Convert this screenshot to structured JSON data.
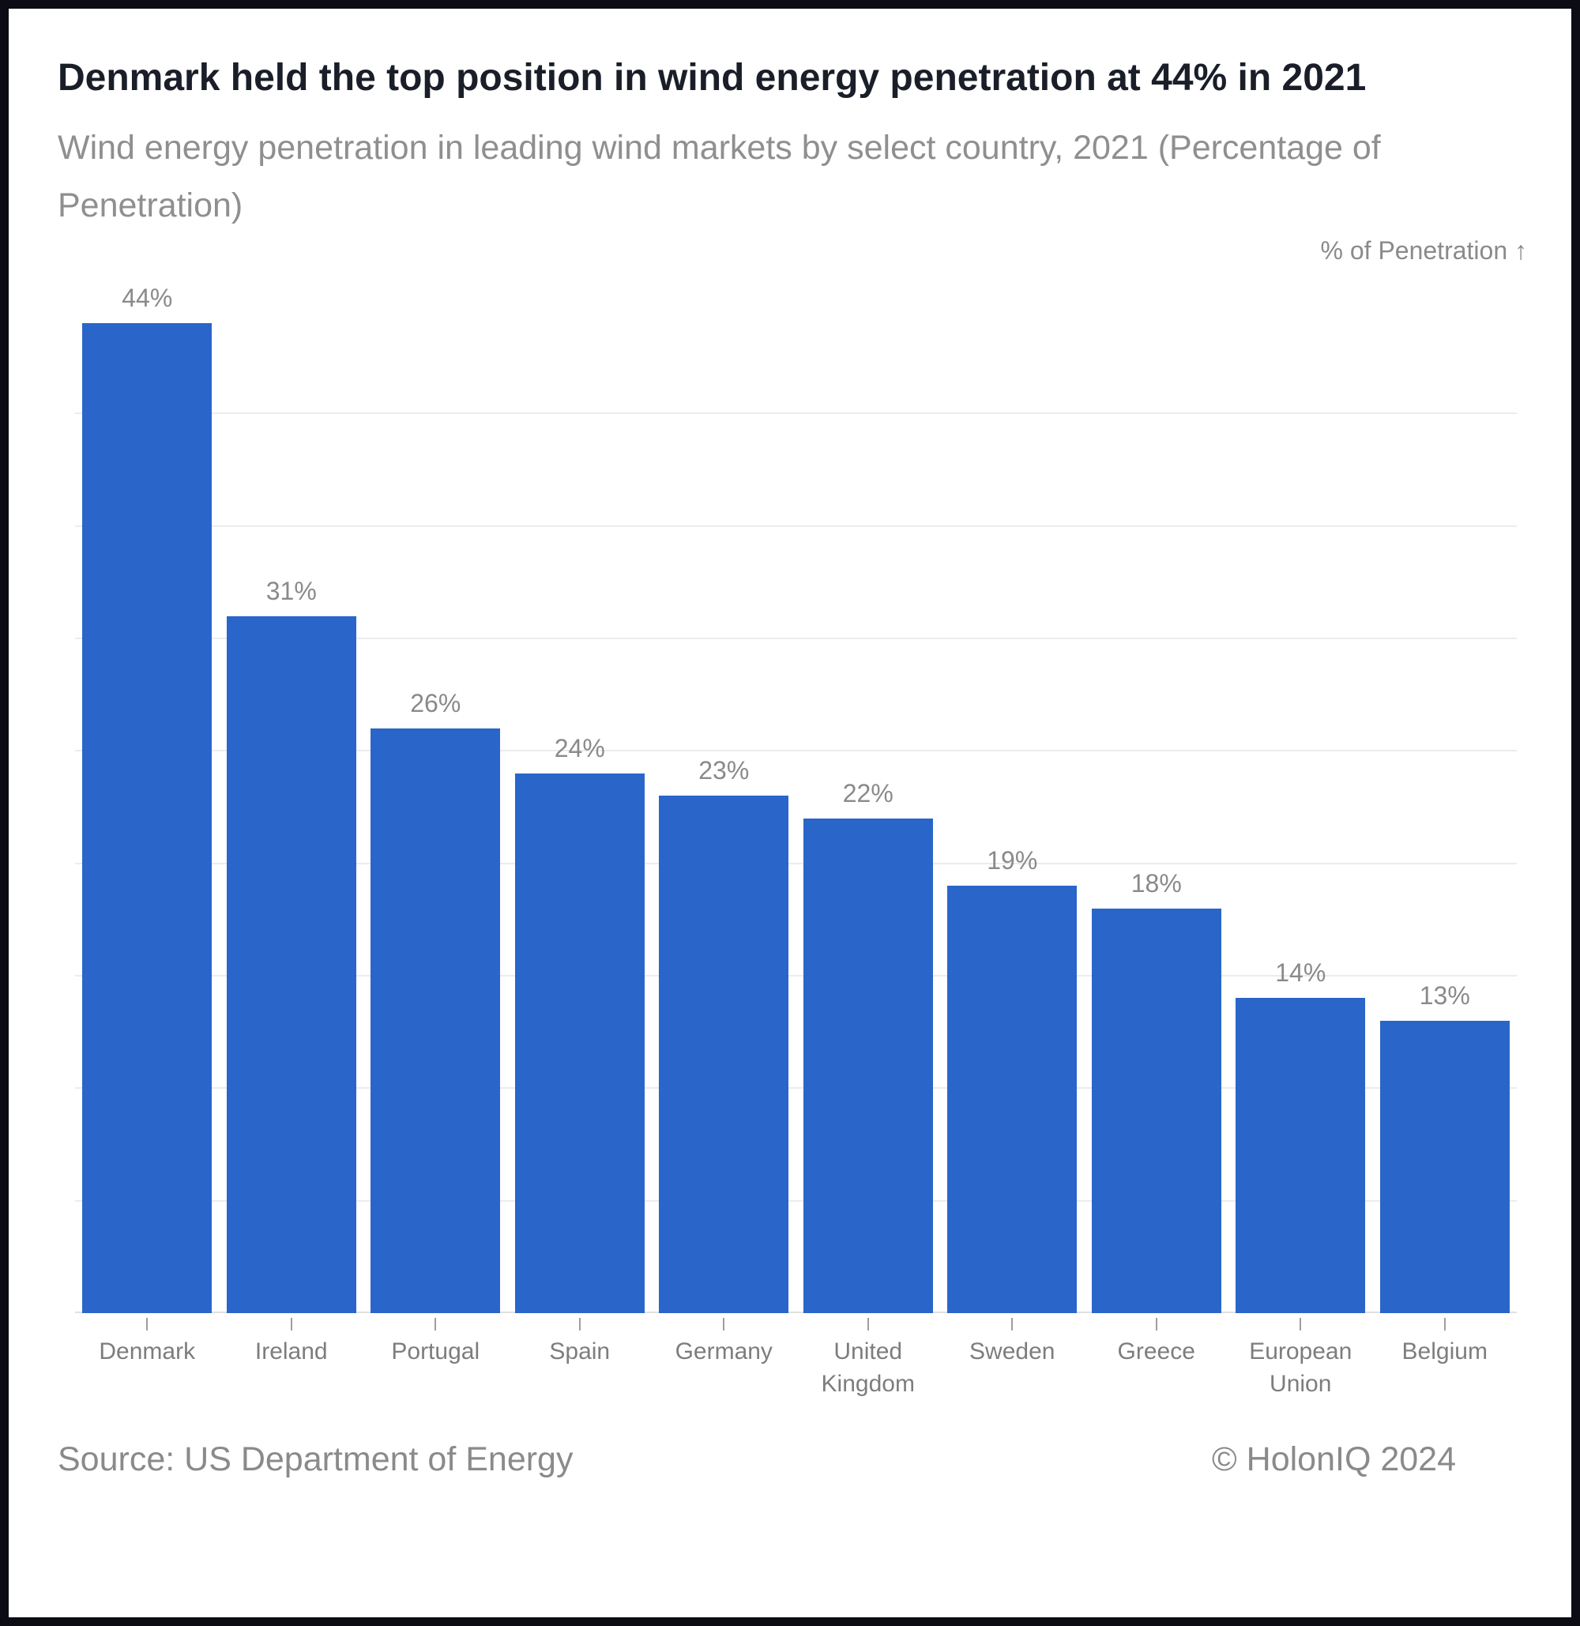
{
  "header": {
    "title": "Denmark held the top position in wind energy penetration at 44% in 2021",
    "subtitle": "Wind energy penetration in leading wind markets by select country, 2021 (Percentage of Penetration)"
  },
  "chart_data": {
    "type": "bar",
    "title": "Denmark held the top position in wind energy penetration at 44% in 2021",
    "subtitle": "Wind energy penetration in leading wind markets by select country, 2021 (Percentage of Penetration)",
    "categories": [
      "Denmark",
      "Ireland",
      "Portugal",
      "Spain",
      "Germany",
      "United Kingdom",
      "Sweden",
      "Greece",
      "European Union",
      "Belgium"
    ],
    "values": [
      44,
      31,
      26,
      24,
      23,
      22,
      19,
      18,
      14,
      13
    ],
    "value_labels": [
      "44%",
      "31%",
      "26%",
      "24%",
      "23%",
      "22%",
      "19%",
      "18%",
      "14%",
      "13%"
    ],
    "xlabel": "",
    "ylabel": "% of Penetration ↑",
    "ylim": [
      0,
      45
    ],
    "grid_interval": 5,
    "grid": "horizontal",
    "legend_position": "none",
    "bar_color": "#2a65ca"
  },
  "footer": {
    "source": "Source: US Department of Energy",
    "copyright": "© HolonIQ 2024"
  }
}
